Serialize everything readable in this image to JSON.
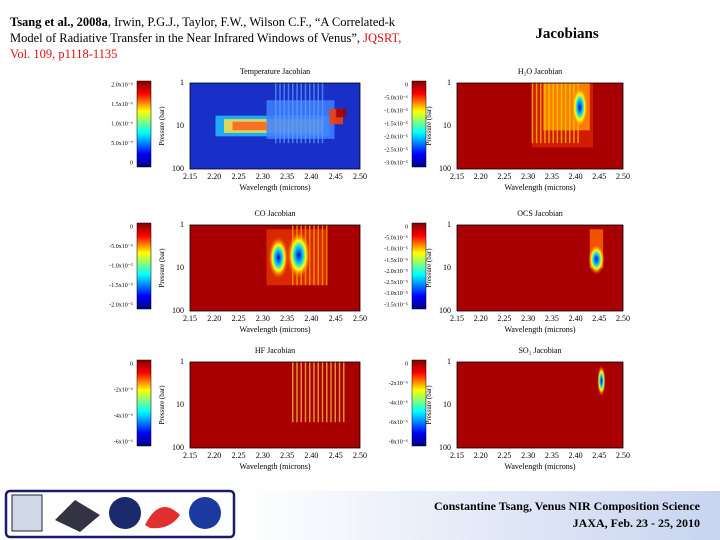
{
  "header": {
    "authors_lead": "Tsang et al., 2008a",
    "citation": ", Irwin, P.G.J., Taylor, F.W., Wilson C.F., “A Correlated-k Model of Radiative Transfer in the Near Infrared Windows of Venus”, ",
    "journal": "JQSRT, Vol. 109, p1118-1135",
    "title": "Jacobians"
  },
  "axes": {
    "x_label": "Wavelength (microns)",
    "y_label": "Pressure (bar)",
    "x_ticks": [
      "2.15",
      "2.20",
      "2.25",
      "2.30",
      "2.35",
      "2.40",
      "2.45",
      "2.50"
    ],
    "y_ticks": [
      "1",
      "10",
      "100"
    ]
  },
  "panels": [
    {
      "title": "Temperature Jacobian",
      "colorbar_ticks": [
        "2.0x10⁻⁶",
        "1.5x10⁻⁶",
        "1.0x10⁻⁶",
        "5.0x10⁻⁷",
        "0"
      ]
    },
    {
      "title": "H₂O Jacobian",
      "colorbar_ticks": [
        "0",
        "-5.0x10⁻⁶",
        "-1.0x10⁻⁵",
        "-1.5x10⁻⁵",
        "-2.0x10⁻⁵",
        "-2.5x10⁻⁵",
        "-3.0x10⁻⁵"
      ]
    },
    {
      "title": "CO Jacobian",
      "colorbar_ticks": [
        "0",
        "-5.0x10⁻⁶",
        "-1.0x10⁻⁵",
        "-1.5x10⁻⁵",
        "-2.0x10⁻⁵"
      ]
    },
    {
      "title": "OCS Jacobian",
      "colorbar_ticks": [
        "0",
        "-5.0x10⁻⁶",
        "-1.0x10⁻⁵",
        "-1.5x10⁻⁵",
        "-2.0x10⁻⁵",
        "-2.5x10⁻⁵",
        "-3.0x10⁻⁵",
        "-3.5x10⁻⁵"
      ]
    },
    {
      "title": "HF Jacobian",
      "colorbar_ticks": [
        "0",
        "-2x10⁻⁶",
        "-4x10⁻⁶",
        "-6x10⁻⁶"
      ]
    },
    {
      "title": "SO₂ Jacobian",
      "colorbar_ticks": [
        "0",
        "-2x10⁻⁶",
        "-4x10⁻⁶",
        "-6x10⁻⁶",
        "-8x10⁻⁶"
      ]
    }
  ],
  "footer": {
    "line1": "Constantine Tsang, Venus NIR Composition Science",
    "line2": "JAXA, Feb. 23 - 25, 2010"
  }
}
